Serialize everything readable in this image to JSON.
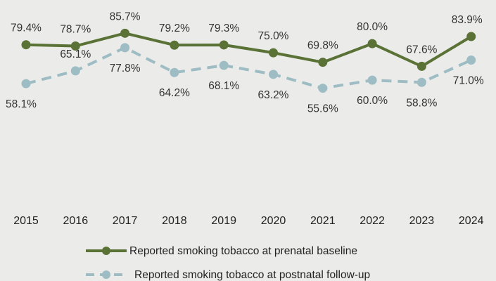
{
  "chart_data": {
    "type": "line",
    "categories": [
      "2015",
      "2016",
      "2017",
      "2018",
      "2019",
      "2020",
      "2021",
      "2022",
      "2023",
      "2024"
    ],
    "series": [
      {
        "name": "Reported smoking tobacco at prenatal baseline",
        "values": [
          79.4,
          78.7,
          85.7,
          79.2,
          79.3,
          75.0,
          69.8,
          80.0,
          67.6,
          83.9
        ],
        "labels": [
          "79.4%",
          "78.7%",
          "85.7%",
          "79.2%",
          "79.3%",
          "75.0%",
          "69.8%",
          "80.0%",
          "67.6%",
          "83.9%"
        ],
        "color": "#5a7236",
        "style": "solid"
      },
      {
        "name": "Reported smoking tobacco at postnatal follow-up",
        "values": [
          58.1,
          65.1,
          77.8,
          64.2,
          68.1,
          63.2,
          55.6,
          60.0,
          58.8,
          71.0
        ],
        "labels": [
          "58.1%",
          "65.1%",
          "77.8%",
          "64.2%",
          "68.1%",
          "63.2%",
          "55.6%",
          "60.0%",
          "58.8%",
          "71.0%"
        ],
        "color": "#9dbcc3",
        "style": "dashed"
      }
    ],
    "grid": false,
    "legend_position": "bottom",
    "background": "#ebecea"
  }
}
